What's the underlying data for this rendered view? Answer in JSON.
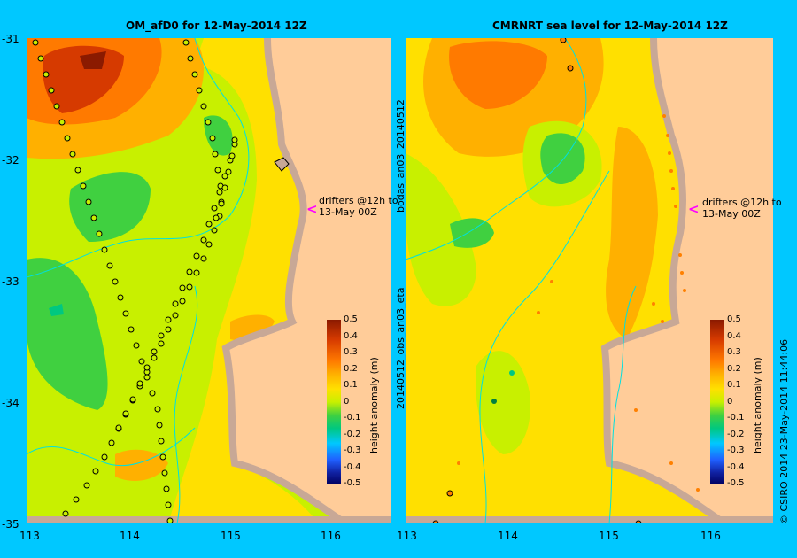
{
  "titles": {
    "left": "OM_afD0 for 12-May-2014 12Z",
    "right": "CMRNRT sea level  for 12-May-2014 12Z"
  },
  "y_ticks": [
    "-31",
    "-32",
    "-33",
    "-34",
    "-35"
  ],
  "x_ticks": [
    "113",
    "114",
    "115",
    "116"
  ],
  "drifter_note": {
    "line1": "drifters @12h to",
    "line2": "13-May 00Z"
  },
  "arrow_glyph": "<",
  "colorbar": {
    "label": "height anomaly (m)",
    "ticks": [
      "0.5",
      "0.4",
      "0.3",
      "0.2",
      "0.1",
      "0",
      "-0.1",
      "-0.2",
      "-0.3",
      "-0.4",
      "-0.5"
    ]
  },
  "side_labels": {
    "top": "bodas_an03_20140512",
    "bottom": "20140512_obs_an03_eta"
  },
  "copyright": "© CSIRO 2014   23-May-2014 11:44:06",
  "colors": {
    "background": "#00c8ff",
    "land": "#ffcc99",
    "coast": "#c8a896",
    "track_line": "#00e0e0"
  }
}
